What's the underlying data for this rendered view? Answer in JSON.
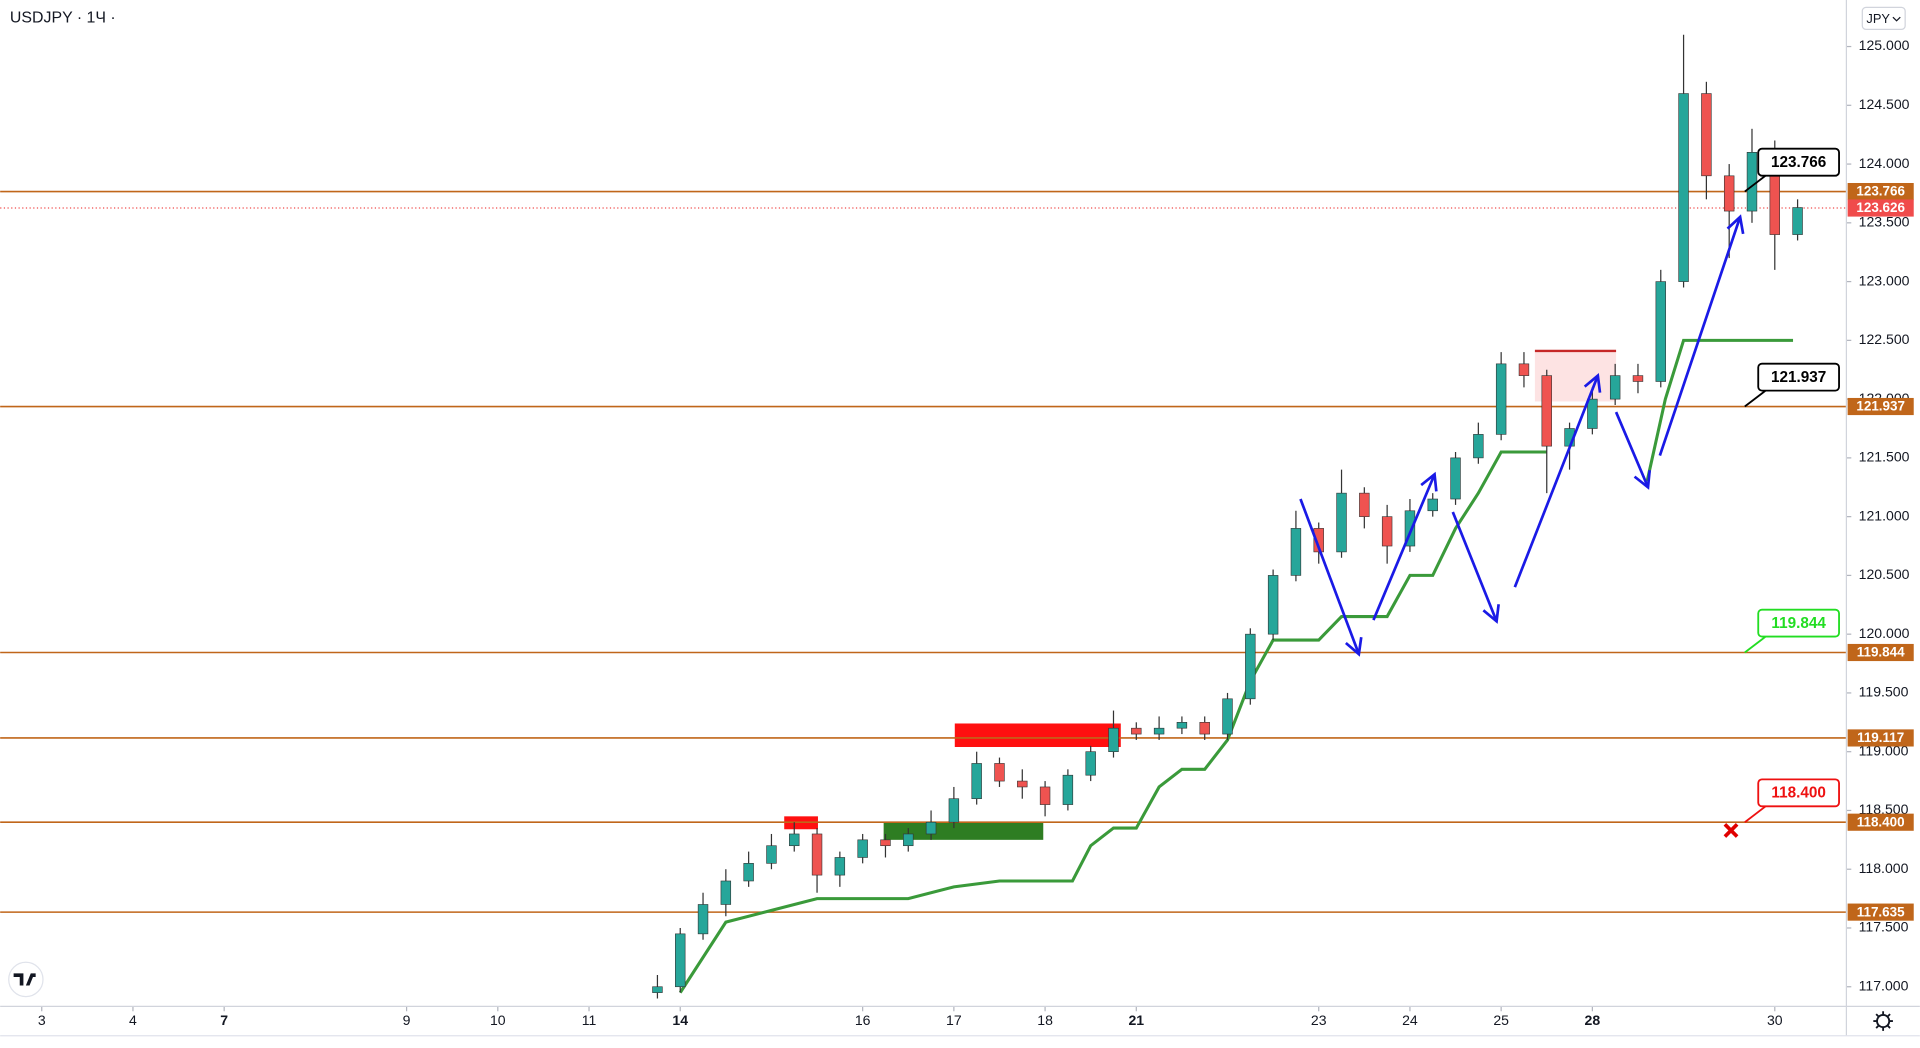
{
  "chart_data": {
    "type": "candlestick",
    "title": "USDJPY · 1Ч ·",
    "currency": "JPY",
    "up_color": "#26a69a",
    "down_color": "#ef5350",
    "wick_color": "#333333",
    "xlim": [
      -0.456,
      19.785
    ],
    "ylim": [
      116.833,
      125.396
    ],
    "xticks": [
      {
        "value": 0,
        "label": "3"
      },
      {
        "value": 1,
        "label": "4"
      },
      {
        "value": 2,
        "label": "7",
        "bold": true
      },
      {
        "value": 4,
        "label": "9"
      },
      {
        "value": 5,
        "label": "10"
      },
      {
        "value": 6,
        "label": "11"
      },
      {
        "value": 7,
        "label": "14",
        "bold": true
      },
      {
        "value": 9,
        "label": "16"
      },
      {
        "value": 10,
        "label": "17"
      },
      {
        "value": 11,
        "label": "18"
      },
      {
        "value": 12,
        "label": "21",
        "bold": true
      },
      {
        "value": 14,
        "label": "23"
      },
      {
        "value": 15,
        "label": "24"
      },
      {
        "value": 16,
        "label": "25"
      },
      {
        "value": 17,
        "label": "28",
        "bold": true
      },
      {
        "value": 19,
        "label": "30"
      }
    ],
    "yticks": [
      {
        "value": 117,
        "label": "117.000"
      },
      {
        "value": 117.5,
        "label": "117.500"
      },
      {
        "value": 118,
        "label": "118.000"
      },
      {
        "value": 118.5,
        "label": "118.500"
      },
      {
        "value": 119,
        "label": "119.000"
      },
      {
        "value": 119.5,
        "label": "119.500"
      },
      {
        "value": 120,
        "label": "120.000"
      },
      {
        "value": 120.5,
        "label": "120.500"
      },
      {
        "value": 121,
        "label": "121.000"
      },
      {
        "value": 121.5,
        "label": "121.500"
      },
      {
        "value": 122,
        "label": "122.000"
      },
      {
        "value": 122.5,
        "label": "122.500"
      },
      {
        "value": 123,
        "label": "123.000"
      },
      {
        "value": 123.5,
        "label": "123.500"
      },
      {
        "value": 124,
        "label": "124.000"
      },
      {
        "value": 124.5,
        "label": "124.500"
      },
      {
        "value": 125,
        "label": "125.000"
      }
    ],
    "x": [
      6.75,
      7,
      7.25,
      7.5,
      7.75,
      8,
      8.25,
      8.5,
      8.75,
      9,
      9.25,
      9.5,
      9.75,
      10,
      10.25,
      10.5,
      10.75,
      11,
      11.25,
      11.5,
      11.75,
      12,
      12.25,
      12.5,
      12.75,
      13,
      13.25,
      13.5,
      13.75,
      14,
      14.25,
      14.5,
      14.75,
      15,
      15.25,
      15.5,
      15.75,
      16,
      16.25,
      16.5,
      16.75,
      17,
      17.25,
      17.5,
      17.75,
      18,
      18.25,
      18.5,
      18.75,
      19,
      19.25
    ],
    "candles": [
      [
        116.95,
        117.1,
        116.9,
        117.0
      ],
      [
        117.0,
        117.5,
        116.95,
        117.45
      ],
      [
        117.45,
        117.8,
        117.4,
        117.7
      ],
      [
        117.7,
        118.0,
        117.6,
        117.9
      ],
      [
        117.9,
        118.15,
        117.85,
        118.05
      ],
      [
        118.05,
        118.3,
        118.0,
        118.2
      ],
      [
        118.2,
        118.4,
        118.15,
        118.3
      ],
      [
        118.3,
        118.35,
        117.8,
        117.95
      ],
      [
        117.95,
        118.15,
        117.85,
        118.1
      ],
      [
        118.1,
        118.3,
        118.05,
        118.25
      ],
      [
        118.25,
        118.3,
        118.1,
        118.2
      ],
      [
        118.2,
        118.35,
        118.15,
        118.3
      ],
      [
        118.3,
        118.5,
        118.25,
        118.4
      ],
      [
        118.4,
        118.7,
        118.35,
        118.6
      ],
      [
        118.6,
        119.0,
        118.55,
        118.9
      ],
      [
        118.9,
        118.95,
        118.7,
        118.75
      ],
      [
        118.75,
        118.85,
        118.6,
        118.7
      ],
      [
        118.7,
        118.75,
        118.45,
        118.55
      ],
      [
        118.55,
        118.85,
        118.5,
        118.8
      ],
      [
        118.8,
        119.05,
        118.75,
        119.0
      ],
      [
        119.0,
        119.35,
        118.95,
        119.2
      ],
      [
        119.2,
        119.25,
        119.1,
        119.15
      ],
      [
        119.15,
        119.3,
        119.1,
        119.2
      ],
      [
        119.2,
        119.3,
        119.15,
        119.25
      ],
      [
        119.25,
        119.3,
        119.1,
        119.15
      ],
      [
        119.15,
        119.5,
        119.1,
        119.45
      ],
      [
        119.45,
        120.05,
        119.4,
        120.0
      ],
      [
        120.0,
        120.55,
        119.95,
        120.5
      ],
      [
        120.5,
        121.05,
        120.45,
        120.9
      ],
      [
        120.9,
        120.95,
        120.6,
        120.7
      ],
      [
        120.7,
        121.4,
        120.65,
        121.2
      ],
      [
        121.2,
        121.25,
        120.9,
        121.0
      ],
      [
        121.0,
        121.1,
        120.6,
        120.75
      ],
      [
        120.75,
        121.15,
        120.7,
        121.05
      ],
      [
        121.05,
        121.2,
        121.0,
        121.15
      ],
      [
        121.15,
        121.55,
        121.1,
        121.5
      ],
      [
        121.5,
        121.8,
        121.45,
        121.7
      ],
      [
        121.7,
        122.4,
        121.65,
        122.3
      ],
      [
        122.3,
        122.4,
        122.1,
        122.2
      ],
      [
        122.2,
        122.25,
        121.2,
        121.6
      ],
      [
        121.6,
        121.8,
        121.4,
        121.75
      ],
      [
        121.75,
        122.1,
        121.7,
        122.0
      ],
      [
        122.0,
        122.3,
        121.95,
        122.2
      ],
      [
        122.2,
        122.3,
        122.05,
        122.15
      ],
      [
        122.15,
        123.1,
        122.1,
        123.0
      ],
      [
        123.0,
        125.1,
        122.95,
        124.6
      ],
      [
        124.6,
        124.7,
        123.7,
        123.9
      ],
      [
        123.9,
        124.0,
        123.2,
        123.6
      ],
      [
        123.6,
        124.3,
        123.5,
        124.1
      ],
      [
        124.1,
        124.2,
        123.1,
        123.4
      ],
      [
        123.4,
        123.7,
        123.35,
        123.63
      ]
    ],
    "supertrend": {
      "color": "#3a9a3a",
      "x": [
        7,
        7.5,
        8,
        8.5,
        9,
        9.5,
        10,
        10.5,
        11,
        11.3,
        11.5,
        11.75,
        12,
        12.25,
        12.5,
        12.75,
        13,
        13.25,
        13.5,
        13.75,
        14,
        14.25,
        14.5,
        14.75,
        15,
        15.25,
        15.5,
        15.75,
        16,
        16.25,
        16.5,
        16.75,
        17.6,
        17.8,
        18,
        19.2
      ],
      "values": [
        116.95,
        117.55,
        117.65,
        117.75,
        117.75,
        117.75,
        117.85,
        117.9,
        117.9,
        117.9,
        118.2,
        118.35,
        118.35,
        118.7,
        118.85,
        118.85,
        119.1,
        119.6,
        119.95,
        119.95,
        119.95,
        120.15,
        120.15,
        120.15,
        120.5,
        120.5,
        120.9,
        121.2,
        121.55,
        121.55,
        121.55,
        null,
        121.3,
        122.0,
        122.5,
        122.5
      ]
    },
    "zones": [
      {
        "x": [
          16.37,
          17.26
        ],
        "y": [
          121.98,
          122.41
        ],
        "color": "#fde3e3",
        "edge": "#c62828"
      },
      {
        "x": [
          9.23,
          10.98
        ],
        "y": [
          118.25,
          118.4
        ],
        "color": "#2e7d22"
      },
      {
        "x": [
          10.01,
          11.83
        ],
        "y": [
          119.04,
          119.24
        ],
        "color": "#ff1010"
      },
      {
        "x": [
          8.14,
          8.51
        ],
        "y": [
          118.34,
          118.45
        ],
        "color": "#ff1010"
      }
    ],
    "level_color": "#c0661a",
    "levels": [
      {
        "value": 123.766,
        "label": "123.766",
        "callout": "#000000"
      },
      {
        "value": 121.937,
        "label": "121.937",
        "callout": "#000000"
      },
      {
        "value": 119.844,
        "label": "119.844",
        "callout": "#22dd22"
      },
      {
        "value": 119.117,
        "label": "119.117"
      },
      {
        "value": 118.4,
        "label": "118.400",
        "callout": "#ee1111"
      },
      {
        "value": 117.635,
        "label": "117.635"
      }
    ],
    "last_price": {
      "value": 123.626,
      "label": "123.626",
      "color": "#f04b4b"
    },
    "arrows": {
      "color": "#1a1ae6",
      "lines": [
        {
          "x": [
            13.8,
            14.44
          ],
          "y": [
            121.15,
            119.83
          ]
        },
        {
          "x": [
            14.6,
            15.27
          ],
          "y": [
            120.12,
            121.36
          ]
        },
        {
          "x": [
            15.47,
            15.95
          ],
          "y": [
            121.04,
            120.11
          ]
        },
        {
          "x": [
            16.15,
            17.06
          ],
          "y": [
            120.4,
            122.2
          ]
        },
        {
          "x": [
            17.26,
            17.61
          ],
          "y": [
            121.89,
            121.25
          ]
        },
        {
          "x": [
            17.74,
            18.62
          ],
          "y": [
            121.52,
            123.55
          ]
        }
      ]
    },
    "marker": {
      "x": 18.52,
      "y": 118.33,
      "color": "#e00000"
    }
  }
}
